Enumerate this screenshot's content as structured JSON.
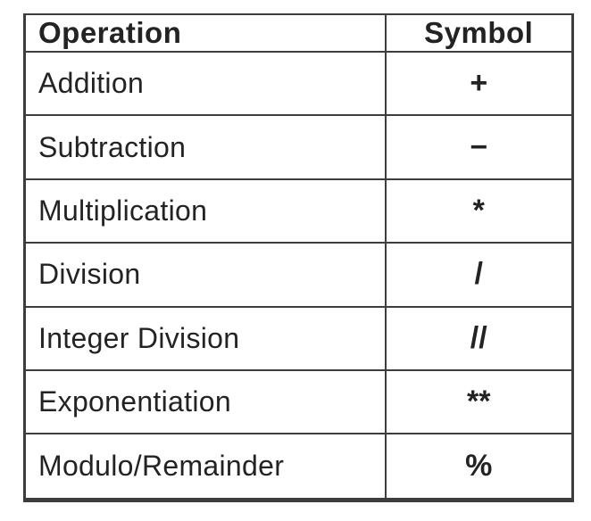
{
  "table": {
    "headers": {
      "operation": "Operation",
      "symbol": "Symbol"
    },
    "rows": [
      {
        "operation": "Addition",
        "symbol": "+"
      },
      {
        "operation": "Subtraction",
        "symbol": "−"
      },
      {
        "operation": "Multiplication",
        "symbol": "*"
      },
      {
        "operation": "Division",
        "symbol": "/"
      },
      {
        "operation": "Integer Division",
        "symbol": "//"
      },
      {
        "operation": "Exponentiation",
        "symbol": "**"
      },
      {
        "operation": "Modulo/Remainder",
        "symbol": "%"
      }
    ]
  },
  "colors": {
    "border": "#3d3d3d",
    "text": "#232323",
    "background": "#ffffff"
  }
}
